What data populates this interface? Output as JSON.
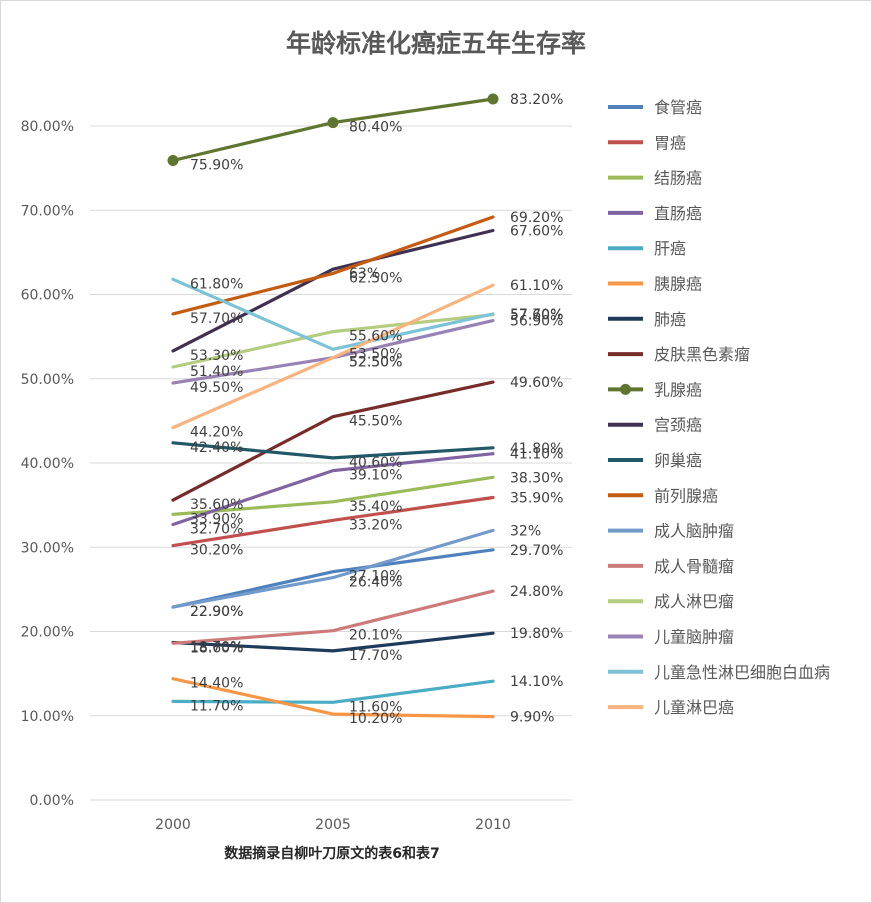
{
  "chart_data": {
    "type": "line",
    "title": "年龄标准化癌症五年生存率",
    "note": "数据摘录自柳叶刀原文的表6和表7",
    "x": [
      "2000",
      "2005",
      "2010"
    ],
    "y_ticks": [
      "0.00%",
      "10.00%",
      "20.00%",
      "30.00%",
      "40.00%",
      "50.00%",
      "60.00%",
      "70.00%",
      "80.00%"
    ],
    "ylim": [
      0,
      80
    ],
    "grid": true,
    "legend_position": "right",
    "series": [
      {
        "name": "食管癌",
        "color": "#4f81bd",
        "values": [
          22.9,
          27.1,
          29.7
        ],
        "labels": [
          "22.90%",
          "27.10%",
          "29.70%"
        ]
      },
      {
        "name": "胃癌",
        "color": "#c0504d",
        "values": [
          30.2,
          33.2,
          35.9
        ],
        "labels": [
          "30.20%",
          "33.20%",
          "35.90%"
        ]
      },
      {
        "name": "结肠癌",
        "color": "#9bbb59",
        "values": [
          33.9,
          35.4,
          38.3
        ],
        "labels": [
          "33.90%",
          "35.40%",
          "38.30%"
        ]
      },
      {
        "name": "直肠癌",
        "color": "#8064a2",
        "values": [
          32.7,
          39.1,
          41.1
        ],
        "labels": [
          "32.70%",
          "39.10%",
          "41.10%"
        ]
      },
      {
        "name": "肝癌",
        "color": "#4bacc6",
        "values": [
          11.7,
          11.6,
          14.1
        ],
        "labels": [
          "11.70%",
          "11.60%",
          "14.10%"
        ]
      },
      {
        "name": "胰腺癌",
        "color": "#f79646",
        "values": [
          14.4,
          10.2,
          9.9
        ],
        "labels": [
          "14.40%",
          "10.20%",
          "9.90%"
        ]
      },
      {
        "name": "肺癌",
        "color": "#1f3b5c",
        "values": [
          18.7,
          17.7,
          19.8
        ],
        "labels": [
          "18.70%",
          "17.70%",
          "19.80%"
        ]
      },
      {
        "name": "皮肤黑色素瘤",
        "color": "#772c2a",
        "values": [
          35.6,
          45.5,
          49.6
        ],
        "labels": [
          "35.60%",
          "45.50%",
          "49.60%"
        ]
      },
      {
        "name": "乳腺癌",
        "color": "#5f7530",
        "values": [
          75.9,
          80.4,
          83.2
        ],
        "labels": [
          "75.90%",
          "80.40%",
          "83.20%"
        ],
        "markers": true
      },
      {
        "name": "宫颈癌",
        "color": "#3f3151",
        "values": [
          53.3,
          63.0,
          67.6
        ],
        "labels": [
          "53.30%",
          "63%",
          "67.60%"
        ]
      },
      {
        "name": "卵巢癌",
        "color": "#215868",
        "values": [
          42.4,
          40.6,
          41.8
        ],
        "labels": [
          "42.40%",
          "40.60%",
          "41.80%"
        ]
      },
      {
        "name": "前列腺癌",
        "color": "#c55a11",
        "values": [
          57.7,
          62.5,
          69.2
        ],
        "labels": [
          "57.70%",
          "62.50%",
          "69.20%"
        ]
      },
      {
        "name": "成人脑肿瘤",
        "color": "#729aca",
        "values": [
          22.9,
          26.4,
          32.0
        ],
        "labels": [
          "22.90%",
          "26.40%",
          "32%"
        ]
      },
      {
        "name": "成人骨髓瘤",
        "color": "#cd7b7a",
        "values": [
          18.6,
          20.1,
          24.8
        ],
        "labels": [
          "18.60%",
          "20.10%",
          "24.80%"
        ]
      },
      {
        "name": "成人淋巴瘤",
        "color": "#b3cc80",
        "values": [
          51.4,
          55.6,
          57.6
        ],
        "labels": [
          "51.40%",
          "55.60%",
          "57.60%"
        ]
      },
      {
        "name": "儿童脑肿瘤",
        "color": "#9983b5",
        "values": [
          49.5,
          52.5,
          56.9
        ],
        "labels": [
          "49.50%",
          "52.50%",
          "56.90%"
        ]
      },
      {
        "name": "儿童急性淋巴细胞白血病",
        "color": "#7cc3d6",
        "values": [
          61.8,
          53.5,
          57.7
        ],
        "labels": [
          "61.80%",
          "53.50%",
          "57.70%"
        ]
      },
      {
        "name": "儿童淋巴癌",
        "color": "#f9b37f",
        "values": [
          44.2,
          52.5,
          61.1
        ],
        "labels": [
          "44.20%",
          "52.50%",
          "61.10%"
        ]
      }
    ]
  }
}
